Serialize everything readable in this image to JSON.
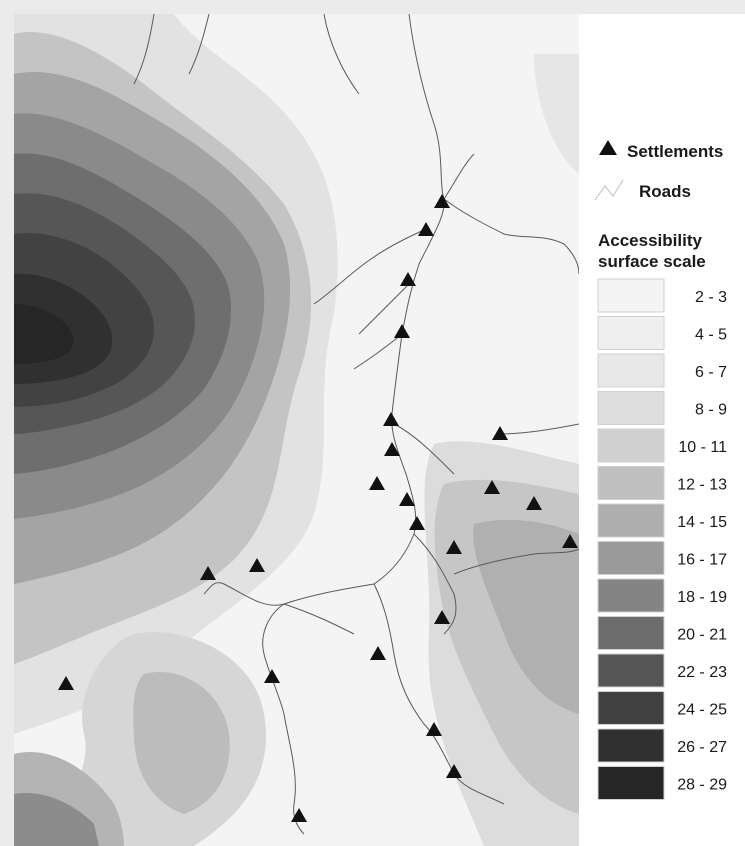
{
  "legend": {
    "settlements_label": "Settlements",
    "roads_label": "Roads",
    "scale_title_line1": "Accessibility",
    "scale_title_line2": "surface scale",
    "scale": [
      {
        "label": "2 - 3",
        "color": "#f4f4f4"
      },
      {
        "label": "4 - 5",
        "color": "#efefef"
      },
      {
        "label": "6 - 7",
        "color": "#e8e8e8"
      },
      {
        "label": "8 - 9",
        "color": "#dedede"
      },
      {
        "label": "10 - 11",
        "color": "#d0d0d0"
      },
      {
        "label": "12 - 13",
        "color": "#c0c0c0"
      },
      {
        "label": "14 - 15",
        "color": "#aeaeae"
      },
      {
        "label": "16 - 17",
        "color": "#9a9a9a"
      },
      {
        "label": "18 - 19",
        "color": "#848484"
      },
      {
        "label": "20 - 21",
        "color": "#6c6c6c"
      },
      {
        "label": "22 - 23",
        "color": "#555555"
      },
      {
        "label": "24 - 25",
        "color": "#404040"
      },
      {
        "label": "26 - 27",
        "color": "#303030"
      },
      {
        "label": "28 - 29",
        "color": "#262626"
      }
    ]
  },
  "map": {
    "settlement_count": 26,
    "settlement_marker_color": "#111111",
    "road_color": "#555555"
  }
}
